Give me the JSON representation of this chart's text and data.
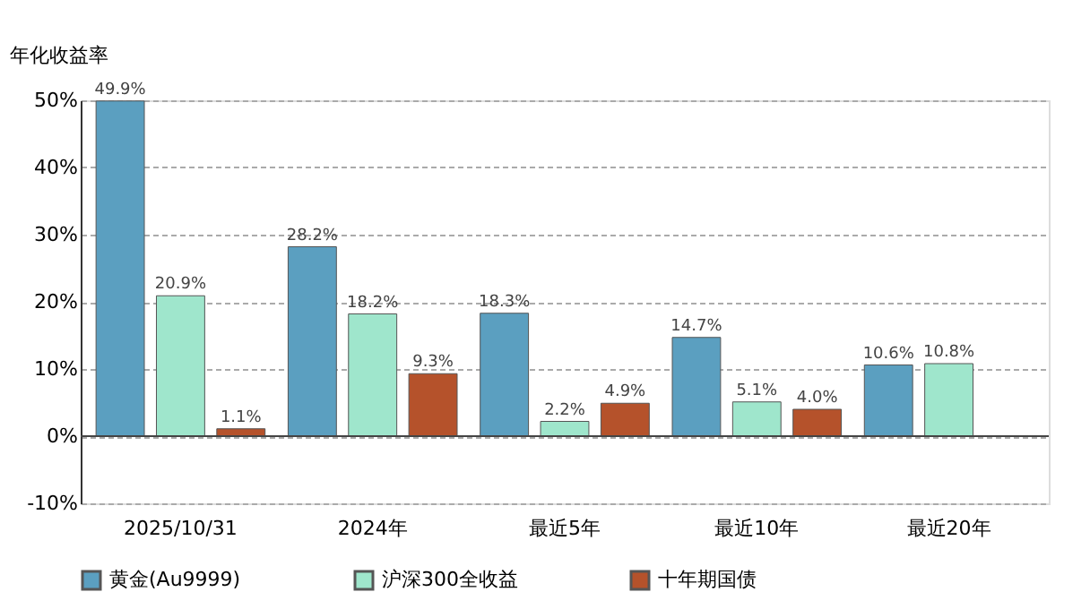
{
  "chart_data": {
    "type": "bar",
    "ylabel": "年化收益率",
    "categories": [
      "2025/10/31",
      "2024年",
      "最近5年",
      "最近10年",
      "最近20年"
    ],
    "series": [
      {
        "name": "黄金(Au9999)",
        "color": "#5b9fc0",
        "values": [
          49.9,
          28.2,
          18.3,
          14.7,
          10.6
        ],
        "value_labels": [
          "49.9%",
          "28.2%",
          "18.3%",
          "14.7%",
          "10.6%"
        ]
      },
      {
        "name": "沪深300全收益",
        "color": "#9fe6cc",
        "values": [
          20.9,
          18.2,
          2.2,
          5.1,
          10.8
        ],
        "value_labels": [
          "20.9%",
          "18.2%",
          "2.2%",
          "5.1%",
          "10.8%"
        ]
      },
      {
        "name": "十年期国债",
        "color": "#b5522b",
        "values": [
          1.1,
          9.3,
          4.9,
          4.0,
          null
        ],
        "value_labels": [
          "1.1%",
          "9.3%",
          "4.9%",
          "4.0%",
          null
        ]
      }
    ],
    "ylim": [
      -10,
      50
    ],
    "yticks": [
      {
        "value": -10,
        "label": "-10%"
      },
      {
        "value": 0,
        "label": "0%"
      },
      {
        "value": 10,
        "label": "10%"
      },
      {
        "value": 20,
        "label": "20%"
      },
      {
        "value": 30,
        "label": "30%"
      },
      {
        "value": 40,
        "label": "40%"
      },
      {
        "value": 50,
        "label": "50%"
      }
    ],
    "grid": "y",
    "legend": "bottom"
  }
}
